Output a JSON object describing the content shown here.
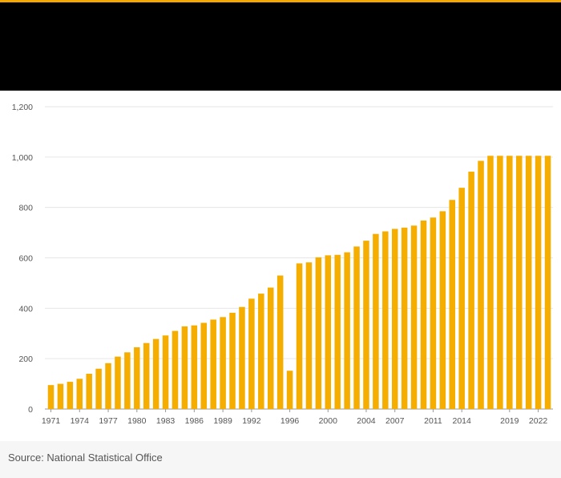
{
  "header": {
    "accent_color": "#f5a800",
    "background": "#000000"
  },
  "source": {
    "label": "Source: National Statistical Office"
  },
  "chart_data": {
    "type": "bar",
    "bar_color": "#f5ad00",
    "title": "",
    "xlabel": "",
    "ylabel": "",
    "ylim": [
      0,
      1200
    ],
    "yticks": [
      0,
      200,
      400,
      600,
      800,
      1000,
      1200
    ],
    "ytick_labels": [
      "0",
      "200",
      "400",
      "600",
      "800",
      "1,000",
      "1,200"
    ],
    "grid": true,
    "categories": [
      1971,
      1972,
      1973,
      1974,
      1975,
      1976,
      1977,
      1978,
      1979,
      1980,
      1981,
      1982,
      1983,
      1984,
      1985,
      1986,
      1987,
      1988,
      1989,
      1990,
      1991,
      1992,
      1993,
      1994,
      1995,
      1996,
      1997,
      1998,
      1999,
      2000,
      2001,
      2002,
      2003,
      2004,
      2005,
      2006,
      2007,
      2008,
      2009,
      2010,
      2011,
      2012,
      2013,
      2014,
      2015,
      2016,
      2017,
      2018,
      2019,
      2020,
      2021,
      2022,
      2023
    ],
    "xtick_labels": [
      "1971",
      "1974",
      "1977",
      "1980",
      "1983",
      "1986",
      "1989",
      "1992",
      "1996",
      "2000",
      "2004",
      "2007",
      "2011",
      "2014",
      "2019",
      "2022"
    ],
    "xtick_positions": [
      1971,
      1974,
      1977,
      1980,
      1983,
      1986,
      1989,
      1992,
      1996,
      2000,
      2004,
      2007,
      2011,
      2014,
      2019,
      2022
    ],
    "values": [
      95,
      100,
      108,
      120,
      140,
      160,
      182,
      208,
      225,
      245,
      262,
      278,
      292,
      310,
      328,
      332,
      342,
      355,
      365,
      382,
      405,
      438,
      458,
      482,
      530,
      152,
      578,
      582,
      602,
      610,
      612,
      622,
      645,
      668,
      695,
      705,
      715,
      720,
      728,
      748,
      760,
      785,
      830,
      878,
      942,
      985,
      1005,
      1005,
      1005,
      1005,
      1005,
      1005,
      1005
    ]
  }
}
